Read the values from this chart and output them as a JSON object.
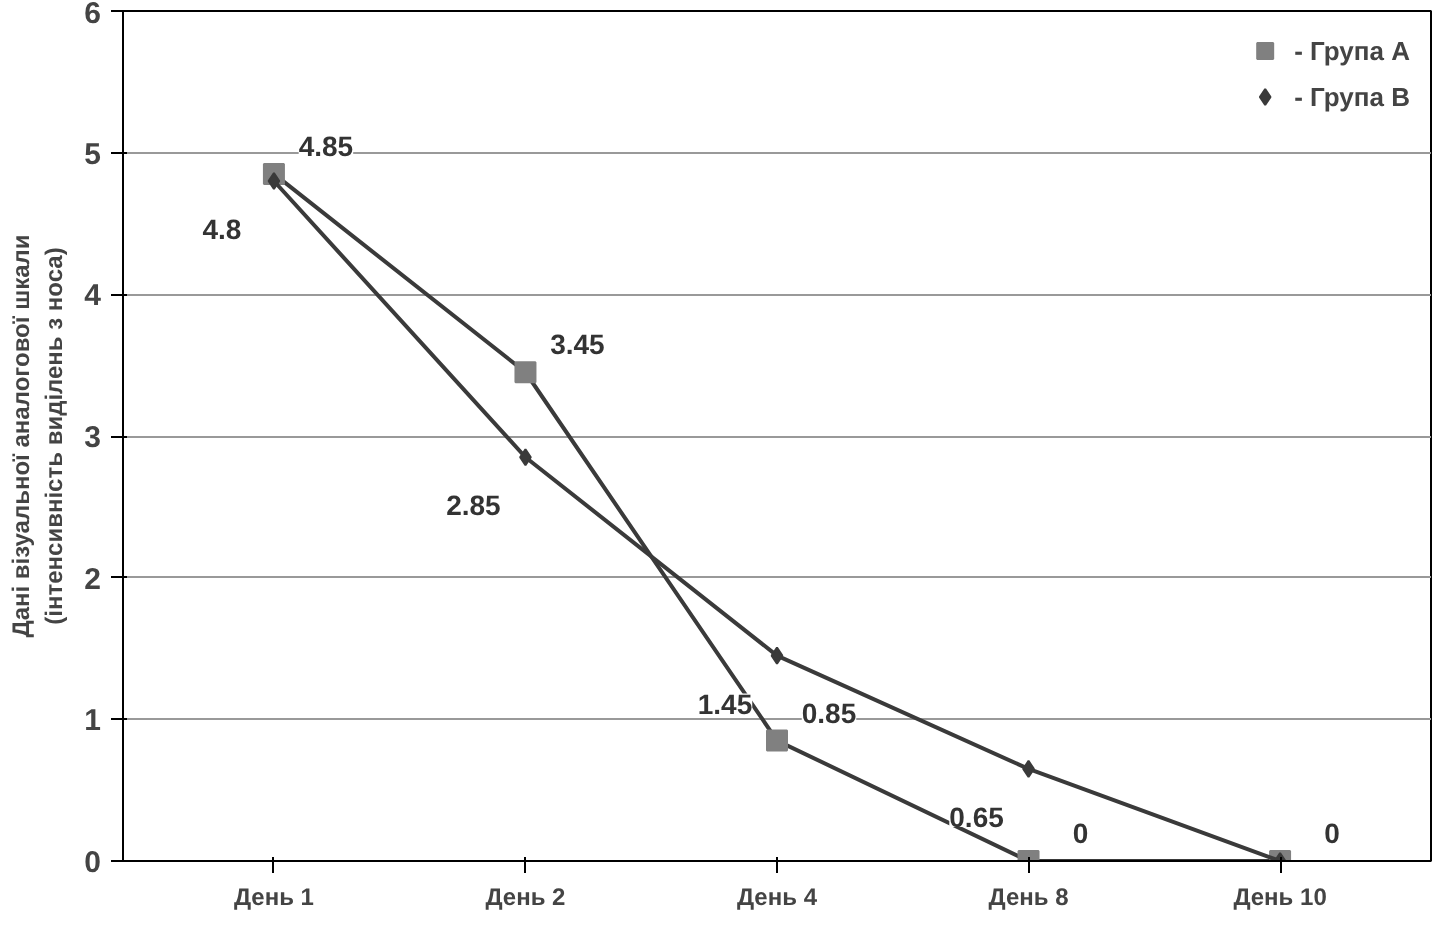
{
  "chart_data": {
    "type": "line",
    "ylabel": "Дані візуальної аналогової шкали\n(інтенсивність виділень з носа)",
    "categories": [
      "День 1",
      "День 2",
      "День 4",
      "День 8",
      "День 10"
    ],
    "series": [
      {
        "name": "- Група А",
        "color": "#808080",
        "marker": "square",
        "values": [
          4.85,
          3.45,
          0.85,
          0,
          0
        ],
        "value_labels": [
          "4.85",
          "3.45",
          "0.85",
          "0",
          "0"
        ]
      },
      {
        "name": "- Група В",
        "color": "#3a3a3a",
        "marker": "diamond",
        "values": [
          4.8,
          2.85,
          1.45,
          0.65,
          0
        ],
        "value_labels": [
          "4.8",
          "2.85",
          "1.45",
          "0.65",
          null
        ]
      }
    ],
    "ylim": [
      0,
      6
    ],
    "yticks": [
      0,
      1,
      2,
      3,
      4,
      5,
      6
    ],
    "grid": "y",
    "legend": "top right",
    "line_style": "solid"
  }
}
